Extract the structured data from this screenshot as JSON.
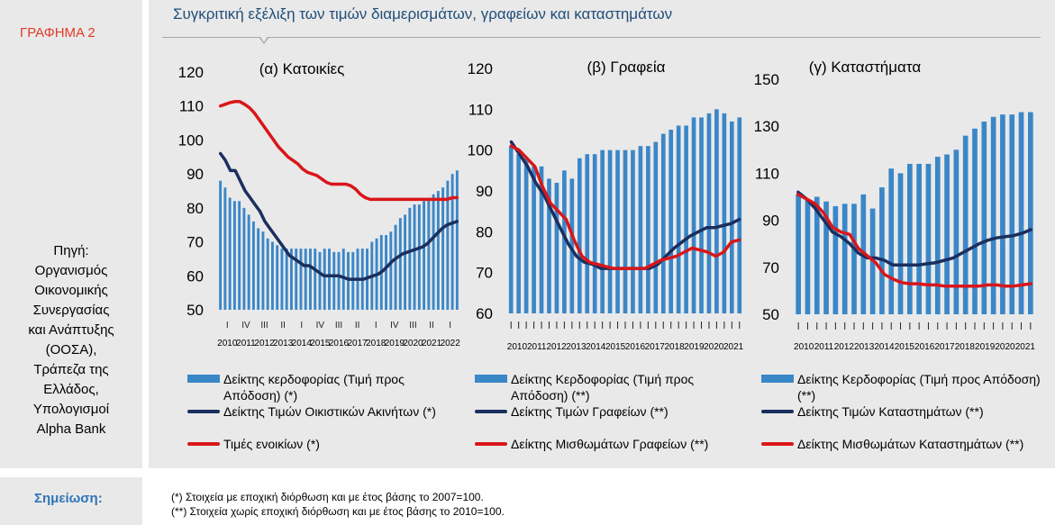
{
  "figure_label": "ΓΡΑΦΗΜΑ 2",
  "title": "Συγκριτική εξέλιξη των τιμών διαμερισμάτων, γραφείων και καταστημάτων",
  "source": {
    "label": "Πηγή:",
    "entities": [
      "Οργανισμός",
      "Οικονομικής",
      "Συνεργασίας",
      "και Ανάπτυξης",
      "(ΟΟΣΑ),",
      "Τράπεζα της",
      "Ελλάδος,",
      "Υπολογισμοί",
      "Alpha Bank"
    ]
  },
  "note": {
    "label": "Σημείωση:",
    "lines": [
      "(*) Στοιχεία με εποχική διόρθωση και με έτος βάσης το 2007=100.",
      "(**) Στοιχεία χωρίς εποχική διόρθωση και με έτος βάσης το 2010=100."
    ]
  },
  "colors": {
    "bar": "#3a87c8",
    "navy": "#1b2f5e",
    "red": "#d9161a",
    "accent": "#e03b27",
    "title": "#1f4e79"
  },
  "chart_data": [
    {
      "type": "bar+line",
      "title": "(α) Κατοικίες",
      "ylim": [
        50,
        120
      ],
      "yticks": [
        50,
        60,
        70,
        80,
        90,
        100,
        110,
        120
      ],
      "xlabels": [
        "2010",
        "2011",
        "2012",
        "2013",
        "2014",
        "2015",
        "2016",
        "2017",
        "2018",
        "2019",
        "2020",
        "2021",
        "2022"
      ],
      "quarter_marks": [
        "I",
        "IV",
        "III",
        "II",
        "I",
        "IV",
        "III",
        "II",
        "I",
        "IV",
        "III",
        "II",
        "I"
      ],
      "series": [
        {
          "name": "Δείκτης κερδοφορίας (Τιμή προς Απόδοση) (*)",
          "kind": "bar",
          "values": [
            88,
            86,
            83,
            82,
            82,
            80,
            78,
            76,
            74,
            73,
            71,
            70,
            69,
            68,
            68,
            68,
            68,
            68,
            68,
            68,
            68,
            67,
            68,
            68,
            67,
            67,
            68,
            67,
            67,
            68,
            68,
            68,
            70,
            71,
            72,
            72,
            73,
            75,
            77,
            78,
            80,
            81,
            81,
            82,
            83,
            84,
            85,
            86,
            88,
            90,
            91
          ]
        },
        {
          "name": "Δείκτης Τιμών Οικιστικών Ακινήτων (*)",
          "kind": "line",
          "color": "navy",
          "values": [
            96,
            94,
            91,
            91,
            88,
            85,
            83,
            81,
            79,
            76,
            74,
            72,
            70,
            68,
            66,
            65,
            64,
            63,
            63,
            62,
            61,
            60,
            60,
            60,
            60,
            59.5,
            59,
            59,
            59,
            59,
            59.5,
            60,
            60.5,
            61.5,
            63,
            64.5,
            65.5,
            66.5,
            67,
            67.5,
            68,
            68.5,
            69.5,
            71,
            72.5,
            74,
            75,
            75.5,
            76
          ]
        },
        {
          "name": "Τιμές ενοικίων (*)",
          "kind": "line",
          "color": "red",
          "values": [
            110,
            110.5,
            111,
            111.3,
            111.3,
            110.5,
            109.5,
            108,
            106,
            104,
            102,
            100,
            98,
            96.5,
            95,
            94,
            93,
            91.5,
            90.5,
            90,
            89.5,
            88.5,
            87.5,
            87,
            87,
            87,
            87,
            86.5,
            85.5,
            84,
            83,
            82.5,
            82.5,
            82.5,
            82.5,
            82.5,
            82.5,
            82.5,
            82.5,
            82.5,
            82.5,
            82.5,
            82.5,
            82.5,
            82.5,
            82.5,
            82.5,
            82.5,
            83,
            83
          ]
        }
      ]
    },
    {
      "type": "bar+line",
      "title": "(β) Γραφεία",
      "ylim": [
        60,
        120
      ],
      "yticks": [
        60,
        70,
        80,
        90,
        100,
        110,
        120
      ],
      "xlabels": [
        "2010",
        "2011",
        "2012",
        "2013",
        "2014",
        "2015",
        "2016",
        "2017",
        "2018",
        "2019",
        "2020",
        "2021"
      ],
      "series": [
        {
          "name": "Δείκτης Κερδοφορίας (Τιμή προς Απόδοση) (**)",
          "kind": "bar",
          "values": [
            101,
            99,
            98,
            96,
            96,
            93,
            92,
            95,
            93,
            98,
            99,
            99,
            100,
            100,
            100,
            100,
            100,
            101,
            101,
            102,
            104,
            105,
            106,
            106,
            108,
            108,
            109,
            110,
            109,
            107,
            108
          ]
        },
        {
          "name": "Δείκτης Τιμών Γραφείων (**)",
          "kind": "line",
          "color": "navy",
          "values": [
            102,
            99,
            96,
            92,
            89,
            85,
            81,
            77,
            74,
            72.5,
            72,
            71,
            71,
            71,
            71,
            71,
            71,
            71,
            72,
            74,
            76,
            77.5,
            79,
            80,
            81,
            81,
            81.5,
            82,
            83
          ]
        },
        {
          "name": "Δείκτης Μισθωμάτων Γραφείων (**)",
          "kind": "line",
          "color": "red",
          "values": [
            101,
            100,
            98,
            96,
            91,
            87,
            85,
            83,
            78,
            74,
            72.5,
            72,
            71.5,
            71,
            71,
            71,
            71,
            71,
            72,
            73,
            73.5,
            74,
            75,
            76,
            75.5,
            75,
            74,
            75,
            77.5,
            78
          ]
        }
      ]
    },
    {
      "type": "bar+line",
      "title": "(γ) Καταστήματα",
      "ylim": [
        50,
        150
      ],
      "yticks": [
        50,
        70,
        90,
        110,
        130,
        150
      ],
      "xlabels": [
        "2010",
        "2011",
        "2012",
        "2013",
        "2014",
        "2015",
        "2016",
        "2017",
        "2018",
        "2019",
        "2020",
        "2021"
      ],
      "series": [
        {
          "name": "Δείκτης Κερδοφορίας (Τιμή προς Απόδοση) (**)",
          "kind": "bar",
          "values": [
            101,
            99,
            100,
            98,
            96,
            97,
            97,
            101,
            95,
            104,
            112,
            110,
            114,
            114,
            114,
            117,
            118,
            120,
            126,
            129,
            132,
            134,
            135,
            135,
            136,
            136
          ]
        },
        {
          "name": "Δείκτης Τιμών Καταστημάτων (**)",
          "kind": "line",
          "color": "navy",
          "values": [
            102,
            99,
            95,
            90,
            85,
            83,
            80,
            76,
            74,
            74,
            73,
            71,
            71,
            71,
            71,
            71.5,
            72,
            73,
            74,
            76,
            78,
            80,
            81.5,
            82.5,
            83,
            83.5,
            84.5,
            86
          ]
        },
        {
          "name": "Δείκτης Μισθωμάτων Καταστημάτων (**)",
          "kind": "line",
          "color": "red",
          "values": [
            101,
            99,
            97,
            93,
            87,
            85,
            84,
            78,
            75,
            72,
            67,
            65,
            63.5,
            63,
            63,
            62.5,
            62.5,
            62,
            62,
            62,
            62,
            62,
            62.5,
            62.5,
            62,
            62,
            62.5,
            63
          ]
        }
      ]
    }
  ]
}
